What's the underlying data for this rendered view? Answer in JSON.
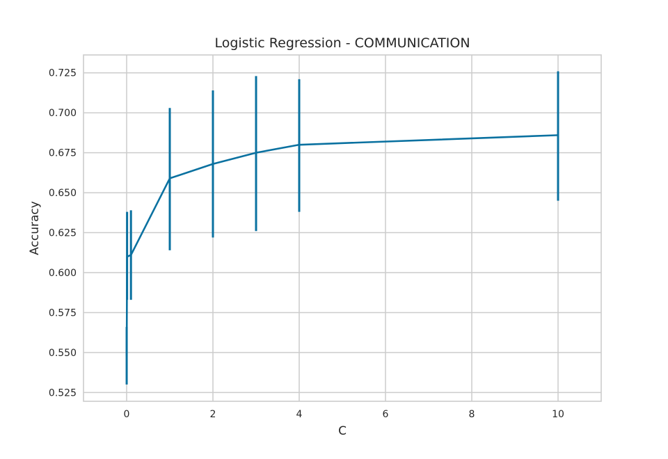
{
  "chart_data": {
    "type": "line",
    "title": "Logistic Regression - COMMUNICATION",
    "xlabel": "C",
    "ylabel": "Accuracy",
    "xlim": [
      -1,
      11
    ],
    "ylim": [
      0.5195,
      0.7362
    ],
    "grid": true,
    "x_ticks": [
      0,
      2,
      4,
      6,
      8,
      10
    ],
    "x_tick_labels": [
      "0",
      "2",
      "4",
      "6",
      "8",
      "10"
    ],
    "y_ticks": [
      0.525,
      0.55,
      0.575,
      0.6,
      0.625,
      0.65,
      0.675,
      0.7,
      0.725
    ],
    "y_tick_labels": [
      "0.525",
      "0.550",
      "0.575",
      "0.600",
      "0.625",
      "0.650",
      "0.675",
      "0.700",
      "0.725"
    ],
    "colors": {
      "series": "#0a71a0",
      "grid": "#cccccc",
      "frame": "#cccccc",
      "background": "#ffffff"
    },
    "series": [
      {
        "x": [
          0.001,
          0.01,
          0.1,
          1,
          2,
          3,
          4,
          10
        ],
        "y": [
          0.548,
          0.61,
          0.611,
          0.659,
          0.668,
          0.675,
          0.68,
          0.686
        ],
        "err_low": [
          0.53,
          0.583,
          0.583,
          0.614,
          0.622,
          0.626,
          0.638,
          0.645
        ],
        "err_high": [
          0.566,
          0.638,
          0.639,
          0.703,
          0.714,
          0.723,
          0.721,
          0.726
        ]
      }
    ]
  }
}
